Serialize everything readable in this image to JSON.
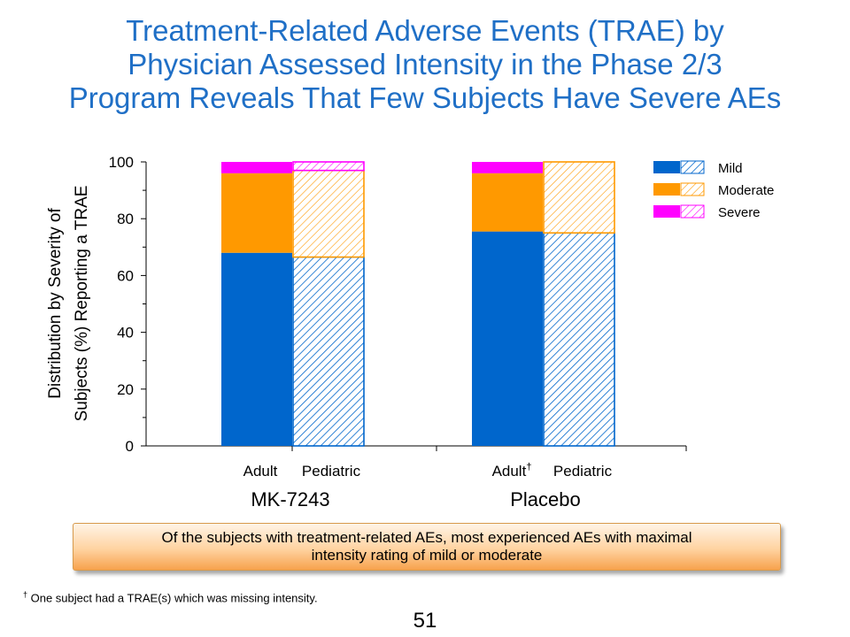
{
  "title_lines": [
    "Treatment-Related Adverse Events (TRAE) by",
    "Physician Assessed Intensity in the Phase 2/3",
    "Program Reveals That Few Subjects Have Severe AEs"
  ],
  "chart_data": {
    "type": "bar",
    "stacked": true,
    "ylabel_lines": [
      "Distribution by Severity of",
      "Subjects (%) Reporting a TRAE"
    ],
    "ylim": [
      0,
      100
    ],
    "yticks": [
      0,
      20,
      40,
      60,
      80,
      100
    ],
    "groups": [
      "MK-7243",
      "Placebo"
    ],
    "categories": [
      "Adult",
      "Pediatric",
      "Adult",
      "Pediatric"
    ],
    "category_markers": [
      "",
      "",
      "†",
      ""
    ],
    "category_group": [
      0,
      0,
      1,
      1
    ],
    "category_pattern": [
      "solid",
      "hatched",
      "solid",
      "hatched"
    ],
    "series": [
      {
        "name": "Mild",
        "color": "#0066cc",
        "values": [
          68,
          66.5,
          75.5,
          75
        ]
      },
      {
        "name": "Moderate",
        "color": "#ff9900",
        "values": [
          28,
          30.5,
          20.5,
          25
        ]
      },
      {
        "name": "Severe",
        "color": "#ff00ff",
        "values": [
          4,
          3,
          4,
          0
        ]
      }
    ],
    "legend_position": "top-right",
    "grid": false
  },
  "callout": {
    "line1": "Of the subjects with treatment-related AEs, most experienced AEs with maximal",
    "line2": "intensity rating of mild or moderate"
  },
  "footnote": {
    "marker": "†",
    "text": " One subject had a TRAE(s) which was missing intensity."
  },
  "page_number": "51"
}
